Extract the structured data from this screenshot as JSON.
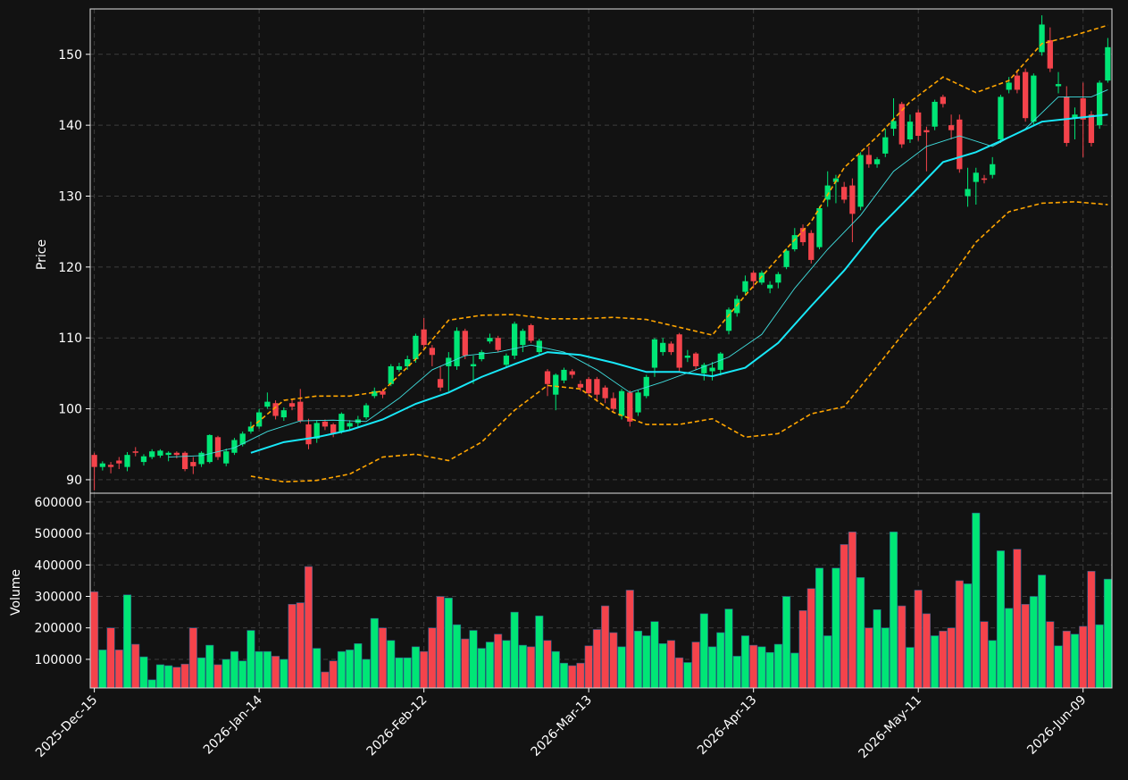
{
  "chart_data": {
    "type": "candlestick",
    "ylabel": "Price",
    "volume_label": "Volume",
    "up_color": "#00e676",
    "down_color": "#f4434b",
    "grid": true,
    "ylim": [
      88.1,
      156.4
    ],
    "yticks": [
      90,
      100,
      110,
      120,
      130,
      140,
      150
    ],
    "volume_ylim": [
      9000,
      628000
    ],
    "volume_yticks": [
      100000,
      200000,
      300000,
      400000,
      500000,
      600000
    ],
    "categories": [
      "2025-Dec-15",
      null,
      null,
      null,
      null,
      null,
      null,
      null,
      null,
      null,
      null,
      null,
      null,
      null,
      null,
      null,
      null,
      null,
      null,
      null,
      "2026-Jan-14",
      null,
      null,
      null,
      null,
      null,
      null,
      null,
      null,
      null,
      null,
      null,
      null,
      null,
      null,
      null,
      null,
      null,
      null,
      null,
      "2026-Feb-12",
      null,
      null,
      null,
      null,
      null,
      null,
      null,
      null,
      null,
      null,
      null,
      null,
      null,
      null,
      null,
      null,
      null,
      null,
      null,
      "2026-Mar-13",
      null,
      null,
      null,
      null,
      null,
      null,
      null,
      null,
      null,
      null,
      null,
      null,
      null,
      null,
      null,
      null,
      null,
      null,
      null,
      "2026-Apr-13",
      null,
      null,
      null,
      null,
      null,
      null,
      null,
      null,
      null,
      null,
      null,
      null,
      null,
      null,
      null,
      null,
      null,
      null,
      null,
      "2026-May-11",
      null,
      null,
      null,
      null,
      null,
      null,
      null,
      null,
      null,
      null,
      null,
      null,
      null,
      null,
      null,
      null,
      null,
      null,
      null,
      "2026-Jun-09",
      null,
      null,
      null
    ],
    "open": [
      93.5,
      91.8,
      92.1,
      92.7,
      91.8,
      94.0,
      92.5,
      93.2,
      93.4,
      93.5,
      93.8,
      93.8,
      92.5,
      92.2,
      92.5,
      96.0,
      92.3,
      93.8,
      95.0,
      96.8,
      97.5,
      100.3,
      100.8,
      98.8,
      100.8,
      101.0,
      97.8,
      95.8,
      98.2,
      97.8,
      96.8,
      97.5,
      98.0,
      98.8,
      101.8,
      102.5,
      103.5,
      105.5,
      106.0,
      107.0,
      111.2,
      108.6,
      104.2,
      106.0,
      106.0,
      111.0,
      106.0,
      107.0,
      109.5,
      110.0,
      106.2,
      107.5,
      109.0,
      111.8,
      108.0,
      105.3,
      102.0,
      104.0,
      105.3,
      103.5,
      104.2,
      104.2,
      103.0,
      101.5,
      99.0,
      102.3,
      99.5,
      101.8,
      105.8,
      108.0,
      109.2,
      110.5,
      107.2,
      107.8,
      105.0,
      105.3,
      105.5,
      111.0,
      113.5,
      116.5,
      119.2,
      117.8,
      117.0,
      117.8,
      120.0,
      122.5,
      125.5,
      124.8,
      122.8,
      129.5,
      132.0,
      131.3,
      131.5,
      128.5,
      135.8,
      134.5,
      136.0,
      139.5,
      143.0,
      138.0,
      141.8,
      139.3,
      139.8,
      144.0,
      140.0,
      140.8,
      130.0,
      132.0,
      132.5,
      133.0,
      138.0,
      145.0,
      147.0,
      147.5,
      140.5,
      150.3,
      152.0,
      145.5,
      144.0,
      141.0,
      143.8,
      141.5,
      140.0,
      146.3
    ],
    "high": [
      93.8,
      92.6,
      92.5,
      93.2,
      93.9,
      94.6,
      93.6,
      94.3,
      94.3,
      94.0,
      94.0,
      94.0,
      93.2,
      94.0,
      96.4,
      96.2,
      94.4,
      95.9,
      96.8,
      98.2,
      100.0,
      102.3,
      101.2,
      100.2,
      101.3,
      102.8,
      98.6,
      98.4,
      98.5,
      98.0,
      99.5,
      98.4,
      99.0,
      100.8,
      103.0,
      102.8,
      106.3,
      106.5,
      107.5,
      110.6,
      112.8,
      109.0,
      106.0,
      108.0,
      111.5,
      111.3,
      107.5,
      108.3,
      110.6,
      110.3,
      107.8,
      112.3,
      111.3,
      112.0,
      109.9,
      105.6,
      105.0,
      105.8,
      105.6,
      104.0,
      104.5,
      104.5,
      103.3,
      102.3,
      102.8,
      102.6,
      102.6,
      104.8,
      110.0,
      110.0,
      109.5,
      110.7,
      108.3,
      108.0,
      106.5,
      106.6,
      108.0,
      114.3,
      116.0,
      118.8,
      119.5,
      119.5,
      118.0,
      119.3,
      122.6,
      125.5,
      126.0,
      125.2,
      128.6,
      133.5,
      133.0,
      132.0,
      132.5,
      136.2,
      137.0,
      135.5,
      139.5,
      143.8,
      143.3,
      141.5,
      142.2,
      139.8,
      143.6,
      144.3,
      141.5,
      141.5,
      134.0,
      134.0,
      133.0,
      135.5,
      144.3,
      146.8,
      147.8,
      148.0,
      147.3,
      155.5,
      153.8,
      147.5,
      145.5,
      142.5,
      146.0,
      142.0,
      146.3,
      152.3
    ],
    "low": [
      88.5,
      91.3,
      90.9,
      91.5,
      91.2,
      93.3,
      92.0,
      92.9,
      93.1,
      92.6,
      93.0,
      91.2,
      90.8,
      91.8,
      92.3,
      92.8,
      91.9,
      93.5,
      94.7,
      96.5,
      97.2,
      100.0,
      98.5,
      98.3,
      99.8,
      98.0,
      94.3,
      95.2,
      97.0,
      96.0,
      96.5,
      96.9,
      97.5,
      98.5,
      101.5,
      101.5,
      103.2,
      105.2,
      105.5,
      106.5,
      108.5,
      106.0,
      102.5,
      102.5,
      105.5,
      107.0,
      103.5,
      106.7,
      109.2,
      108.0,
      105.8,
      107.0,
      108.0,
      109.3,
      107.5,
      101.8,
      99.8,
      103.6,
      104.3,
      102.5,
      101.8,
      101.0,
      100.8,
      99.6,
      98.5,
      97.5,
      99.0,
      101.5,
      104.5,
      107.5,
      107.6,
      105.3,
      106.6,
      105.5,
      104.0,
      104.0,
      104.7,
      110.5,
      113.0,
      116.0,
      117.0,
      117.5,
      116.3,
      117.0,
      119.7,
      122.2,
      123.0,
      120.5,
      122.5,
      128.5,
      129.0,
      129.0,
      123.5,
      128.0,
      134.0,
      134.0,
      135.5,
      138.5,
      136.8,
      137.5,
      137.8,
      133.5,
      139.3,
      142.5,
      138.0,
      133.3,
      128.5,
      128.8,
      131.8,
      132.5,
      137.5,
      144.5,
      144.5,
      140.5,
      140.0,
      149.8,
      147.5,
      144.5,
      137.0,
      138.0,
      135.5,
      137.0,
      139.5,
      146.0
    ],
    "close": [
      91.8,
      92.3,
      91.8,
      92.3,
      93.5,
      93.8,
      93.3,
      94.0,
      94.1,
      93.8,
      93.5,
      91.5,
      91.9,
      93.8,
      96.3,
      93.2,
      94.0,
      95.6,
      96.5,
      97.5,
      99.5,
      101.0,
      99.0,
      99.8,
      100.3,
      98.3,
      95.0,
      98.0,
      97.5,
      96.5,
      99.3,
      98.0,
      98.5,
      100.5,
      102.5,
      102.0,
      106.0,
      106.0,
      107.0,
      110.3,
      109.0,
      107.6,
      103.0,
      107.2,
      111.0,
      107.5,
      106.3,
      108.0,
      110.0,
      108.3,
      107.5,
      112.0,
      111.0,
      109.6,
      109.6,
      103.5,
      104.8,
      105.5,
      104.8,
      103.0,
      102.2,
      102.0,
      101.5,
      100.0,
      102.5,
      98.2,
      102.3,
      104.5,
      109.8,
      109.3,
      108.0,
      105.8,
      107.5,
      106.0,
      106.2,
      105.8,
      107.8,
      114.0,
      115.5,
      118.0,
      118.0,
      119.2,
      117.5,
      119.0,
      122.3,
      124.5,
      123.5,
      121.0,
      128.3,
      131.5,
      132.5,
      129.5,
      127.5,
      135.8,
      134.5,
      135.2,
      138.3,
      140.6,
      137.3,
      140.5,
      138.5,
      139.0,
      143.3,
      143.0,
      139.3,
      133.8,
      131.0,
      133.3,
      132.3,
      134.5,
      144.0,
      146.0,
      145.0,
      141.0,
      147.0,
      154.2,
      148.0,
      145.8,
      137.5,
      141.5,
      140.8,
      137.5,
      146.0,
      151.0
    ],
    "volume": [
      315000,
      130000,
      200000,
      130000,
      305000,
      148000,
      108000,
      35000,
      83000,
      80000,
      75000,
      85000,
      200000,
      105000,
      145000,
      83000,
      100000,
      125000,
      95000,
      192000,
      125000,
      125000,
      110000,
      100000,
      275000,
      280000,
      395000,
      135000,
      60000,
      95000,
      125000,
      130000,
      150000,
      100000,
      230000,
      200000,
      160000,
      105000,
      105000,
      140000,
      125000,
      200000,
      300000,
      295000,
      210000,
      165000,
      192000,
      135000,
      155000,
      180000,
      160000,
      250000,
      145000,
      140000,
      238000,
      160000,
      125000,
      88000,
      80000,
      88000,
      143000,
      195000,
      270000,
      185000,
      140000,
      320000,
      190000,
      175000,
      220000,
      150000,
      160000,
      105000,
      90000,
      155000,
      245000,
      140000,
      185000,
      260000,
      110000,
      175000,
      145000,
      140000,
      122000,
      148000,
      300000,
      120000,
      255000,
      325000,
      390000,
      175000,
      390000,
      465000,
      505000,
      360000,
      200000,
      258000,
      200000,
      505000,
      270000,
      138000,
      320000,
      245000,
      175000,
      190000,
      200000,
      350000,
      340000,
      565000,
      220000,
      160000,
      445000,
      262000,
      450000,
      275000,
      300000,
      368000,
      220000,
      143000,
      190000,
      180000,
      205000,
      380000,
      210000,
      355000
    ],
    "overlays": [
      {
        "color": "#40e0e0",
        "style": "thin",
        "x": [
          9,
          13,
          17,
          21,
          25,
          29,
          33,
          37,
          41,
          45,
          49,
          53,
          57,
          61,
          65,
          69,
          73,
          77,
          81,
          85,
          89,
          93,
          97,
          101,
          105,
          109,
          113,
          117,
          121,
          123
        ],
        "values": [
          93.2,
          93.4,
          94.5,
          96.8,
          98.3,
          98.4,
          98.2,
          101.5,
          105.5,
          107.5,
          108.0,
          109.0,
          108.0,
          105.5,
          102.3,
          103.8,
          105.5,
          107.3,
          110.5,
          117.0,
          122.5,
          127.3,
          133.5,
          137.0,
          138.5,
          137.0,
          139.5,
          144.0,
          144.0,
          145.0
        ]
      },
      {
        "color": "#18e8f8",
        "style": "thick",
        "x": [
          19,
          23,
          27,
          31,
          35,
          39,
          43,
          47,
          51,
          55,
          59,
          63,
          67,
          71,
          75,
          79,
          83,
          87,
          91,
          95,
          99,
          103,
          107,
          111,
          115,
          119,
          123
        ],
        "values": [
          93.8,
          95.3,
          96.0,
          97.0,
          98.5,
          100.7,
          102.3,
          104.5,
          106.3,
          108.0,
          107.6,
          106.5,
          105.2,
          105.2,
          104.6,
          105.8,
          109.3,
          114.5,
          119.5,
          125.3,
          130.0,
          134.8,
          136.2,
          138.3,
          140.5,
          141.0,
          141.5
        ]
      },
      {
        "color": "#ffa500",
        "style": "dashed",
        "x": [
          19,
          23,
          27,
          31,
          35,
          39,
          43,
          47,
          51,
          55,
          59,
          63,
          67,
          71,
          75,
          79,
          83,
          87,
          91,
          95,
          99,
          103,
          107,
          111,
          115,
          119,
          123
        ],
        "values": [
          97.3,
          101.2,
          101.8,
          101.8,
          102.5,
          107.0,
          112.5,
          113.2,
          113.3,
          112.7,
          112.7,
          112.9,
          112.6,
          111.5,
          110.4,
          116.0,
          121.3,
          126.4,
          134.0,
          138.4,
          143.3,
          146.8,
          144.6,
          146.3,
          151.5,
          152.7,
          154.1
        ]
      },
      {
        "color": "#ffa500",
        "style": "dashed",
        "x": [
          19,
          23,
          27,
          31,
          35,
          39,
          43,
          47,
          51,
          55,
          59,
          63,
          67,
          71,
          75,
          79,
          83,
          87,
          91,
          95,
          99,
          103,
          107,
          111,
          115,
          119,
          123
        ],
        "values": [
          90.5,
          89.7,
          89.9,
          90.8,
          93.2,
          93.6,
          92.7,
          95.3,
          99.8,
          103.3,
          102.8,
          99.5,
          97.8,
          97.8,
          98.6,
          96.0,
          96.5,
          99.3,
          100.3,
          106.0,
          111.8,
          117.0,
          123.5,
          127.8,
          129.0,
          129.2,
          128.8
        ]
      }
    ]
  }
}
